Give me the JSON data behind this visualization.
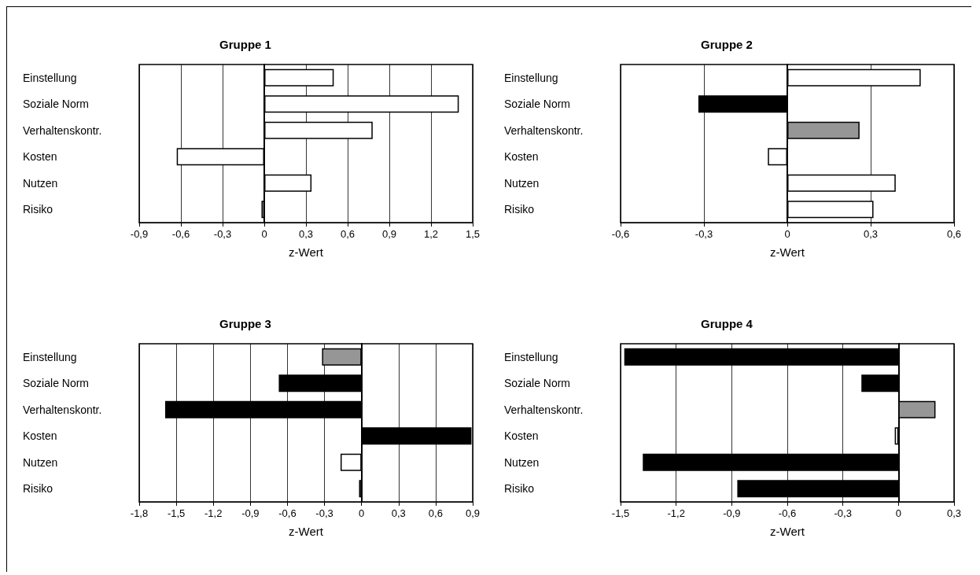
{
  "chart_data": [
    {
      "type": "bar",
      "orientation": "horizontal",
      "title": "Gruppe 1",
      "xlabel": "z-Wert",
      "categories": [
        "Einstellung",
        "Soziale Norm",
        "Verhaltenskontr.",
        "Kosten",
        "Nutzen",
        "Risiko"
      ],
      "values": [
        0.5,
        1.4,
        0.78,
        -0.63,
        0.34,
        -0.02
      ],
      "colors": [
        "#ffffff",
        "#ffffff",
        "#ffffff",
        "#ffffff",
        "#ffffff",
        "#ffffff"
      ],
      "xlim": [
        -0.9,
        1.5
      ],
      "xticks": [
        {
          "value": -0.9,
          "label": "-0,9"
        },
        {
          "value": -0.6,
          "label": "-0,6"
        },
        {
          "value": -0.3,
          "label": "-0,3"
        },
        {
          "value": 0,
          "label": "0"
        },
        {
          "value": 0.3,
          "label": "0,3"
        },
        {
          "value": 0.6,
          "label": "0,6"
        },
        {
          "value": 0.9,
          "label": "0,9"
        },
        {
          "value": 1.2,
          "label": "1,2"
        },
        {
          "value": 1.5,
          "label": "1,5"
        }
      ],
      "grid": "x"
    },
    {
      "type": "bar",
      "orientation": "horizontal",
      "title": "Gruppe 2",
      "xlabel": "z-Wert",
      "categories": [
        "Einstellung",
        "Soziale Norm",
        "Verhaltenskontr.",
        "Kosten",
        "Nutzen",
        "Risiko"
      ],
      "values": [
        0.48,
        -0.32,
        0.26,
        -0.07,
        0.39,
        0.31
      ],
      "colors": [
        "#ffffff",
        "#000000",
        "#969696",
        "#ffffff",
        "#ffffff",
        "#ffffff"
      ],
      "xlim": [
        -0.6,
        0.6
      ],
      "xticks": [
        {
          "value": -0.6,
          "label": "-0,6"
        },
        {
          "value": -0.3,
          "label": "-0,3"
        },
        {
          "value": 0,
          "label": "0"
        },
        {
          "value": 0.3,
          "label": "0,3"
        },
        {
          "value": 0.6,
          "label": "0,6"
        }
      ],
      "grid": "x"
    },
    {
      "type": "bar",
      "orientation": "horizontal",
      "title": "Gruppe 3",
      "xlabel": "z-Wert",
      "categories": [
        "Einstellung",
        "Soziale Norm",
        "Verhaltenskontr.",
        "Kosten",
        "Nutzen",
        "Risiko"
      ],
      "values": [
        -0.32,
        -0.67,
        -1.59,
        0.89,
        -0.17,
        -0.02
      ],
      "colors": [
        "#969696",
        "#000000",
        "#000000",
        "#000000",
        "#ffffff",
        "#ffffff"
      ],
      "xlim": [
        -1.8,
        0.9
      ],
      "xticks": [
        {
          "value": -1.8,
          "label": "-1,8"
        },
        {
          "value": -1.5,
          "label": "-1,5"
        },
        {
          "value": -1.2,
          "label": "-1,2"
        },
        {
          "value": -0.9,
          "label": "-0,9"
        },
        {
          "value": -0.6,
          "label": "-0,6"
        },
        {
          "value": -0.3,
          "label": "-0,3"
        },
        {
          "value": 0,
          "label": "0"
        },
        {
          "value": 0.3,
          "label": "0,3"
        },
        {
          "value": 0.6,
          "label": "0,6"
        },
        {
          "value": 0.9,
          "label": "0,9"
        }
      ],
      "grid": "x"
    },
    {
      "type": "bar",
      "orientation": "horizontal",
      "title": "Gruppe 4",
      "xlabel": "z-Wert",
      "categories": [
        "Einstellung",
        "Soziale Norm",
        "Verhaltenskontr.",
        "Kosten",
        "Nutzen",
        "Risiko"
      ],
      "values": [
        -1.48,
        -0.2,
        0.2,
        -0.02,
        -1.38,
        -0.87
      ],
      "colors": [
        "#000000",
        "#000000",
        "#969696",
        "#ffffff",
        "#000000",
        "#000000"
      ],
      "xlim": [
        -1.5,
        0.3
      ],
      "xticks": [
        {
          "value": -1.5,
          "label": "-1,5"
        },
        {
          "value": -1.2,
          "label": "-1,2"
        },
        {
          "value": -0.9,
          "label": "-0,9"
        },
        {
          "value": -0.6,
          "label": "-0,6"
        },
        {
          "value": -0.3,
          "label": "-0,3"
        },
        {
          "value": 0,
          "label": "0"
        },
        {
          "value": 0.3,
          "label": "0,3"
        }
      ],
      "grid": "x"
    }
  ]
}
